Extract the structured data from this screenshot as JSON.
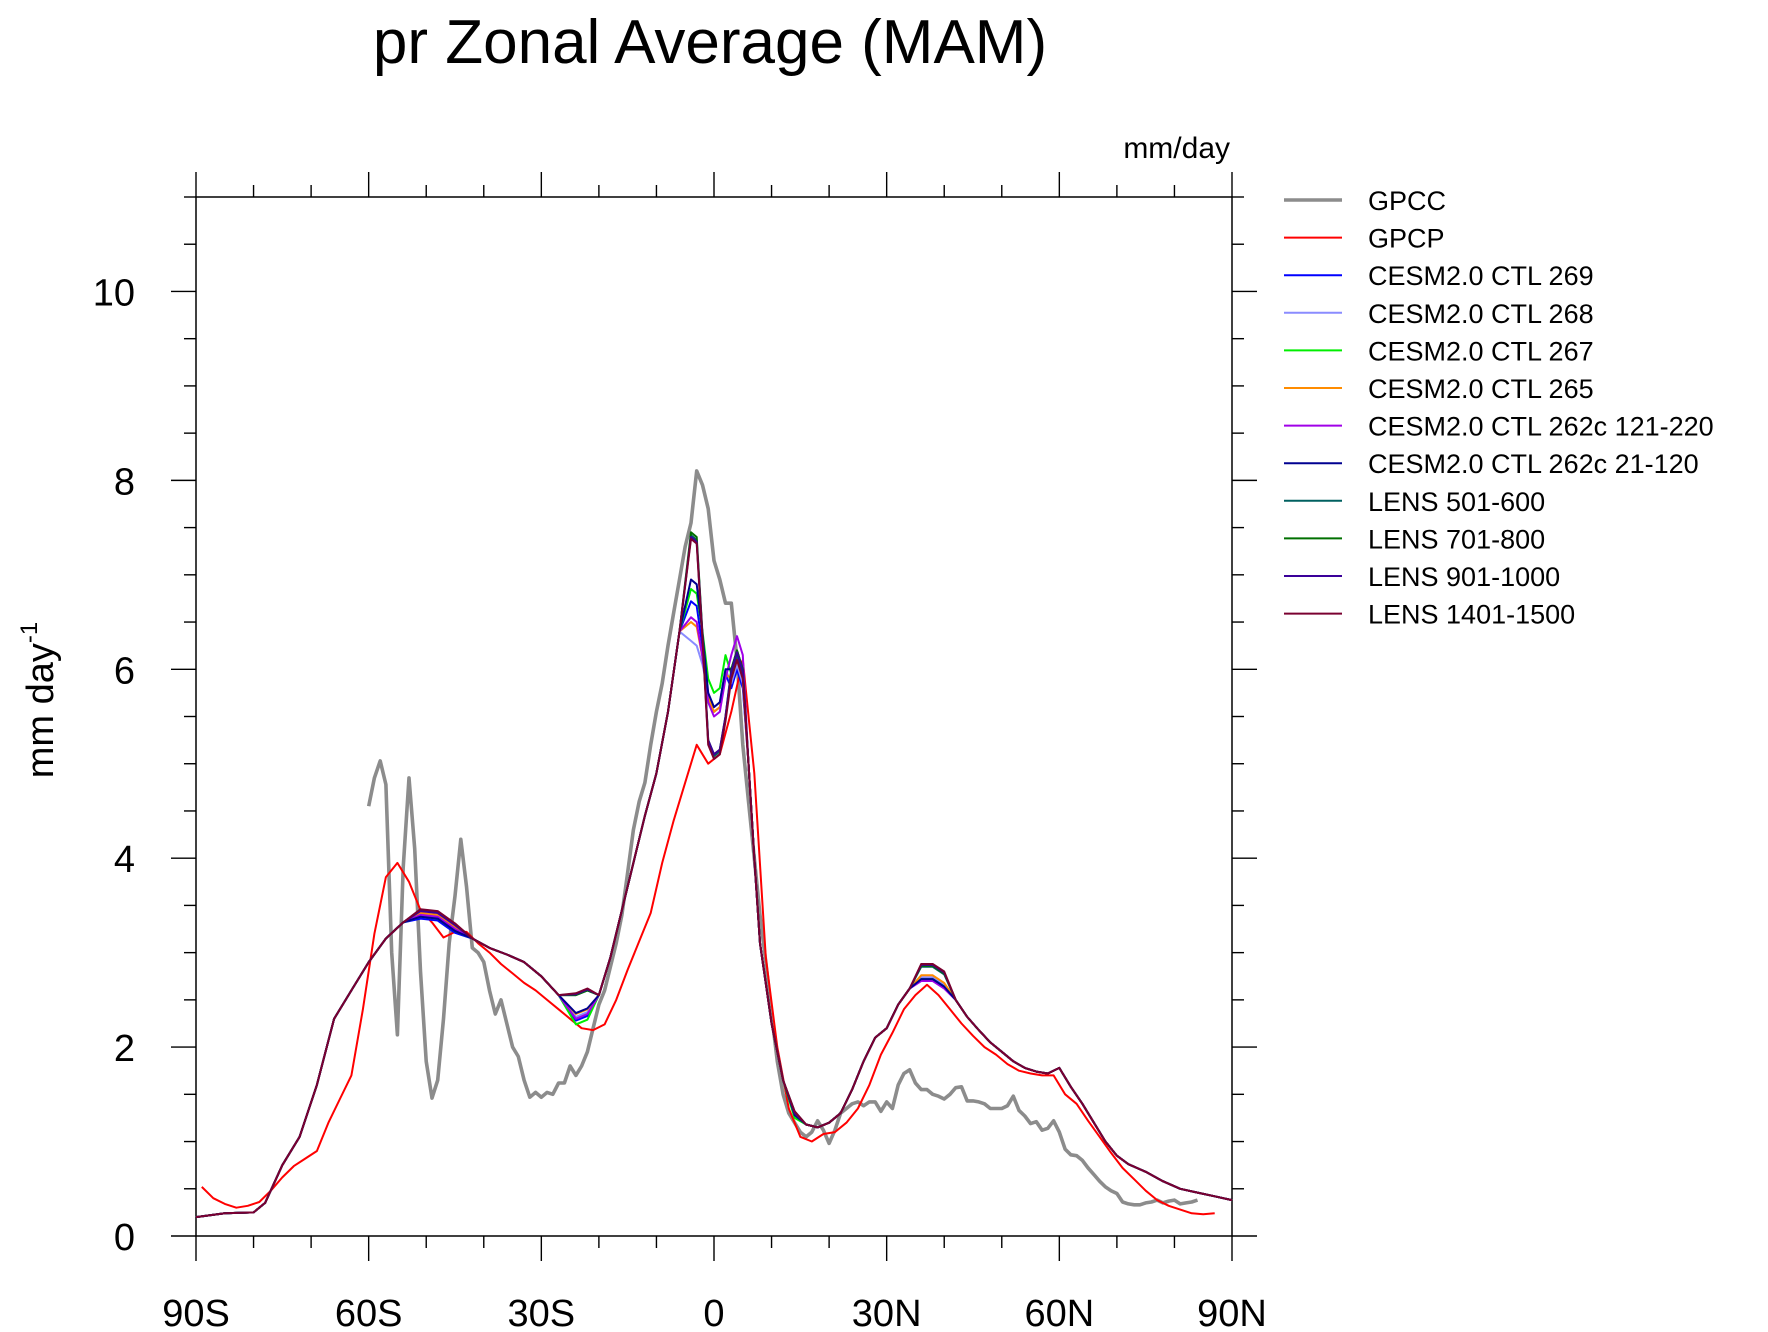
{
  "chart_data": {
    "type": "line",
    "title": "pr Zonal Average (MAM)",
    "units_label": "mm/day",
    "ylabel": "mm day",
    "ylabel_superscript": "-1",
    "xlabel": "",
    "xlim": [
      -90,
      90
    ],
    "ylim": [
      0,
      11
    ],
    "x_ticks": [
      {
        "value": -90,
        "label": "90S"
      },
      {
        "value": -60,
        "label": "60S"
      },
      {
        "value": -30,
        "label": "30S"
      },
      {
        "value": 0,
        "label": "0"
      },
      {
        "value": 30,
        "label": "30N"
      },
      {
        "value": 60,
        "label": "60N"
      },
      {
        "value": 90,
        "label": "90N"
      }
    ],
    "y_ticks": [
      {
        "value": 0,
        "label": "0"
      },
      {
        "value": 2,
        "label": "2"
      },
      {
        "value": 4,
        "label": "4"
      },
      {
        "value": 6,
        "label": "6"
      },
      {
        "value": 8,
        "label": "8"
      },
      {
        "value": 10,
        "label": "10"
      }
    ],
    "legend_position": "right",
    "series": [
      {
        "name": "GPCC",
        "color": "#8c8c8c",
        "width": "thick",
        "points": [
          [
            -60,
            4.55
          ],
          [
            -59,
            4.85
          ],
          [
            -58,
            5.03
          ],
          [
            -57,
            4.78
          ],
          [
            -56,
            3.0
          ],
          [
            -55,
            2.13
          ],
          [
            -54,
            3.9
          ],
          [
            -53,
            4.85
          ],
          [
            -52,
            4.1
          ],
          [
            -51,
            2.8
          ],
          [
            -50,
            1.85
          ],
          [
            -49,
            1.46
          ],
          [
            -48,
            1.65
          ],
          [
            -47,
            2.3
          ],
          [
            -46,
            3.1
          ],
          [
            -45,
            3.6
          ],
          [
            -44,
            4.2
          ],
          [
            -43,
            3.7
          ],
          [
            -42,
            3.05
          ],
          [
            -41,
            3.0
          ],
          [
            -40,
            2.9
          ],
          [
            -39,
            2.6
          ],
          [
            -38,
            2.35
          ],
          [
            -37,
            2.5
          ],
          [
            -36,
            2.25
          ],
          [
            -35,
            2.0
          ],
          [
            -34,
            1.9
          ],
          [
            -33,
            1.65
          ],
          [
            -32,
            1.47
          ],
          [
            -31,
            1.52
          ],
          [
            -30,
            1.47
          ],
          [
            -29,
            1.52
          ],
          [
            -28,
            1.5
          ],
          [
            -27,
            1.62
          ],
          [
            -26,
            1.62
          ],
          [
            -25,
            1.8
          ],
          [
            -24,
            1.7
          ],
          [
            -23,
            1.8
          ],
          [
            -22,
            1.95
          ],
          [
            -21,
            2.2
          ],
          [
            -20,
            2.45
          ],
          [
            -19,
            2.6
          ],
          [
            -18,
            2.85
          ],
          [
            -17,
            3.1
          ],
          [
            -16,
            3.4
          ],
          [
            -15,
            3.85
          ],
          [
            -14,
            4.3
          ],
          [
            -13,
            4.6
          ],
          [
            -12,
            4.8
          ],
          [
            -11,
            5.2
          ],
          [
            -10,
            5.55
          ],
          [
            -9,
            5.85
          ],
          [
            -8,
            6.25
          ],
          [
            -7,
            6.6
          ],
          [
            -6,
            6.95
          ],
          [
            -5,
            7.3
          ],
          [
            -4,
            7.55
          ],
          [
            -3,
            8.1
          ],
          [
            -2,
            7.95
          ],
          [
            -1,
            7.7
          ],
          [
            0,
            7.15
          ],
          [
            1,
            6.95
          ],
          [
            2,
            6.7
          ],
          [
            3,
            6.7
          ],
          [
            4,
            6.1
          ],
          [
            5,
            5.2
          ],
          [
            6,
            4.6
          ],
          [
            7,
            4.0
          ],
          [
            8,
            3.4
          ],
          [
            9,
            2.9
          ],
          [
            10,
            2.35
          ],
          [
            11,
            1.85
          ],
          [
            12,
            1.5
          ],
          [
            13,
            1.3
          ],
          [
            14,
            1.2
          ],
          [
            15,
            1.1
          ],
          [
            16,
            1.05
          ],
          [
            17,
            1.1
          ],
          [
            18,
            1.22
          ],
          [
            19,
            1.12
          ],
          [
            20,
            0.98
          ],
          [
            21,
            1.12
          ],
          [
            22,
            1.3
          ],
          [
            23,
            1.35
          ],
          [
            24,
            1.4
          ],
          [
            25,
            1.42
          ],
          [
            26,
            1.38
          ],
          [
            27,
            1.42
          ],
          [
            28,
            1.42
          ],
          [
            29,
            1.32
          ],
          [
            30,
            1.42
          ],
          [
            31,
            1.35
          ],
          [
            32,
            1.6
          ],
          [
            33,
            1.72
          ],
          [
            34,
            1.76
          ],
          [
            35,
            1.62
          ],
          [
            36,
            1.55
          ],
          [
            37,
            1.55
          ],
          [
            38,
            1.5
          ],
          [
            39,
            1.48
          ],
          [
            40,
            1.45
          ],
          [
            41,
            1.5
          ],
          [
            42,
            1.57
          ],
          [
            43,
            1.58
          ],
          [
            44,
            1.43
          ],
          [
            45,
            1.43
          ],
          [
            46,
            1.42
          ],
          [
            47,
            1.4
          ],
          [
            48,
            1.35
          ],
          [
            49,
            1.35
          ],
          [
            50,
            1.35
          ],
          [
            51,
            1.38
          ],
          [
            52,
            1.48
          ],
          [
            53,
            1.33
          ],
          [
            54,
            1.27
          ],
          [
            55,
            1.19
          ],
          [
            56,
            1.21
          ],
          [
            57,
            1.12
          ],
          [
            58,
            1.14
          ],
          [
            59,
            1.22
          ],
          [
            60,
            1.1
          ],
          [
            61,
            0.92
          ],
          [
            62,
            0.86
          ],
          [
            63,
            0.85
          ],
          [
            64,
            0.8
          ],
          [
            65,
            0.72
          ],
          [
            66,
            0.65
          ],
          [
            67,
            0.58
          ],
          [
            68,
            0.52
          ],
          [
            69,
            0.48
          ],
          [
            70,
            0.45
          ],
          [
            71,
            0.36
          ],
          [
            72,
            0.34
          ],
          [
            73,
            0.33
          ],
          [
            74,
            0.33
          ],
          [
            75,
            0.35
          ],
          [
            76,
            0.36
          ],
          [
            77,
            0.38
          ],
          [
            78,
            0.35
          ],
          [
            79,
            0.37
          ],
          [
            80,
            0.38
          ],
          [
            81,
            0.34
          ],
          [
            82,
            0.35
          ],
          [
            83,
            0.36
          ],
          [
            84,
            0.38
          ]
        ]
      },
      {
        "name": "GPCP",
        "color": "#ff0000",
        "width": "thin",
        "points": [
          [
            -89,
            0.52
          ],
          [
            -87,
            0.4
          ],
          [
            -85,
            0.34
          ],
          [
            -83,
            0.3
          ],
          [
            -81,
            0.32
          ],
          [
            -79,
            0.36
          ],
          [
            -77,
            0.48
          ],
          [
            -75,
            0.62
          ],
          [
            -73,
            0.74
          ],
          [
            -71,
            0.82
          ],
          [
            -69,
            0.9
          ],
          [
            -67,
            1.2
          ],
          [
            -65,
            1.45
          ],
          [
            -63,
            1.7
          ],
          [
            -61,
            2.4
          ],
          [
            -59,
            3.2
          ],
          [
            -57,
            3.8
          ],
          [
            -55,
            3.95
          ],
          [
            -53,
            3.75
          ],
          [
            -51,
            3.45
          ],
          [
            -49,
            3.32
          ],
          [
            -47,
            3.16
          ],
          [
            -45,
            3.22
          ],
          [
            -43,
            3.22
          ],
          [
            -41,
            3.1
          ],
          [
            -39,
            3.0
          ],
          [
            -37,
            2.88
          ],
          [
            -35,
            2.78
          ],
          [
            -33,
            2.68
          ],
          [
            -31,
            2.6
          ],
          [
            -29,
            2.5
          ],
          [
            -27,
            2.4
          ],
          [
            -25,
            2.3
          ],
          [
            -23,
            2.2
          ],
          [
            -21,
            2.18
          ],
          [
            -19,
            2.24
          ],
          [
            -17,
            2.5
          ],
          [
            -15,
            2.82
          ],
          [
            -13,
            3.12
          ],
          [
            -11,
            3.42
          ],
          [
            -9,
            3.95
          ],
          [
            -7,
            4.4
          ],
          [
            -5,
            4.8
          ],
          [
            -3,
            5.2
          ],
          [
            -1,
            5.0
          ],
          [
            1,
            5.1
          ],
          [
            3,
            5.55
          ],
          [
            5,
            6.1
          ],
          [
            7,
            4.9
          ],
          [
            9,
            2.95
          ],
          [
            11,
            2.0
          ],
          [
            13,
            1.35
          ],
          [
            15,
            1.05
          ],
          [
            17,
            1.0
          ],
          [
            19,
            1.08
          ],
          [
            21,
            1.1
          ],
          [
            23,
            1.2
          ],
          [
            25,
            1.35
          ],
          [
            27,
            1.6
          ],
          [
            29,
            1.92
          ],
          [
            31,
            2.15
          ],
          [
            33,
            2.4
          ],
          [
            35,
            2.55
          ],
          [
            37,
            2.66
          ],
          [
            39,
            2.55
          ],
          [
            41,
            2.4
          ],
          [
            43,
            2.25
          ],
          [
            45,
            2.12
          ],
          [
            47,
            2.0
          ],
          [
            49,
            1.92
          ],
          [
            51,
            1.82
          ],
          [
            53,
            1.75
          ],
          [
            55,
            1.72
          ],
          [
            57,
            1.7
          ],
          [
            59,
            1.7
          ],
          [
            61,
            1.5
          ],
          [
            63,
            1.4
          ],
          [
            65,
            1.22
          ],
          [
            67,
            1.05
          ],
          [
            69,
            0.88
          ],
          [
            71,
            0.72
          ],
          [
            73,
            0.6
          ],
          [
            75,
            0.48
          ],
          [
            77,
            0.38
          ],
          [
            79,
            0.32
          ],
          [
            81,
            0.28
          ],
          [
            83,
            0.24
          ],
          [
            85,
            0.23
          ],
          [
            87,
            0.24
          ]
        ]
      },
      {
        "name": "CESM2.0 CTL 269",
        "color": "#0000ff",
        "width": "thin",
        "model": {
          "sq": 3.36,
          "sp": 2.28,
          "epk": 6.72,
          "tr": 5.55,
          "np": 6.0,
          "rt": 1.3,
          "nh": 2.72
        }
      },
      {
        "name": "CESM2.0 CTL 268",
        "color": "#8a8cff",
        "width": "thin",
        "model": {
          "sq": 3.4,
          "sp": 2.32,
          "epk": 6.3,
          "tr": 5.6,
          "np": 6.05,
          "rt": 1.28,
          "nh": 2.74
        }
      },
      {
        "name": "CESM2.0 CTL 267",
        "color": "#00ee00",
        "width": "thin",
        "model": {
          "sq": 3.38,
          "sp": 2.24,
          "epk": 6.85,
          "tr": 5.75,
          "np": 6.15,
          "rt": 1.25,
          "nh": 2.72
        }
      },
      {
        "name": "CESM2.0 CTL 265",
        "color": "#ff8c00",
        "width": "thin",
        "model": {
          "sq": 3.42,
          "sp": 2.35,
          "epk": 6.5,
          "tr": 5.55,
          "np": 6.1,
          "rt": 1.3,
          "nh": 2.76
        }
      },
      {
        "name": "CESM2.0 CTL 262c 121-220",
        "color": "#a000e8",
        "width": "thin",
        "model": {
          "sq": 3.4,
          "sp": 2.3,
          "epk": 6.55,
          "tr": 5.5,
          "np": 6.35,
          "rt": 1.3,
          "nh": 2.7
        }
      },
      {
        "name": "CESM2.0 CTL 262c 21-120",
        "color": "#000090",
        "width": "thin",
        "model": {
          "sq": 3.38,
          "sp": 2.36,
          "epk": 6.95,
          "tr": 5.6,
          "np": 6.2,
          "rt": 1.28,
          "nh": 2.72
        }
      },
      {
        "name": "LENS 501-600",
        "color": "#006060",
        "width": "thin",
        "model": {
          "sq": 3.45,
          "sp": 2.55,
          "epk": 7.42,
          "tr": 5.08,
          "np": 6.15,
          "rt": 1.32,
          "nh": 2.85
        }
      },
      {
        "name": "LENS 701-800",
        "color": "#007000",
        "width": "thin",
        "model": {
          "sq": 3.45,
          "sp": 2.55,
          "epk": 7.45,
          "tr": 5.1,
          "np": 6.2,
          "rt": 1.3,
          "nh": 2.86
        }
      },
      {
        "name": "LENS 901-1000",
        "color": "#3a0099",
        "width": "thin",
        "model": {
          "sq": 3.44,
          "sp": 2.56,
          "epk": 7.4,
          "tr": 5.1,
          "np": 6.18,
          "rt": 1.3,
          "nh": 2.87
        }
      },
      {
        "name": "LENS 1401-1500",
        "color": "#7a0030",
        "width": "thin",
        "model": {
          "sq": 3.46,
          "sp": 2.57,
          "epk": 7.38,
          "tr": 5.05,
          "np": 6.1,
          "rt": 1.32,
          "nh": 2.88
        }
      }
    ]
  }
}
